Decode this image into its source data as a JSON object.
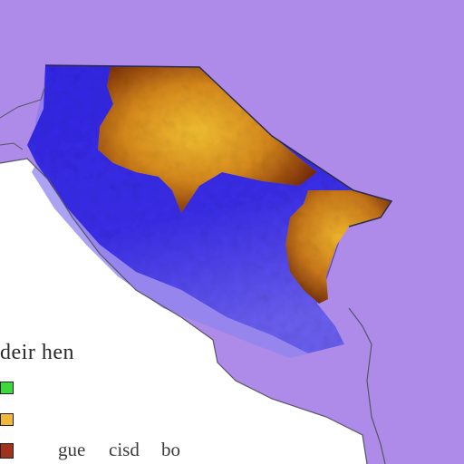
{
  "map": {
    "colors": {
      "background": "#ae8ae9",
      "land": "#ffffff",
      "region_low": "#3a2ee8",
      "region_mid": "#6b5ef0",
      "region_high_dark": "#7a2d08",
      "region_high_bright": "#f0b020",
      "border": "#2b2b4a"
    }
  },
  "legend": {
    "title": "deir hen",
    "swatches": [
      {
        "color": "#3fd83a",
        "icon": "green-swatch"
      },
      {
        "color": "#f0b93a",
        "icon": "orange-swatch"
      },
      {
        "color": "#a0321e",
        "icon": "dark-red-swatch"
      }
    ],
    "labels": [
      "gue",
      "cisd",
      "bo"
    ]
  }
}
